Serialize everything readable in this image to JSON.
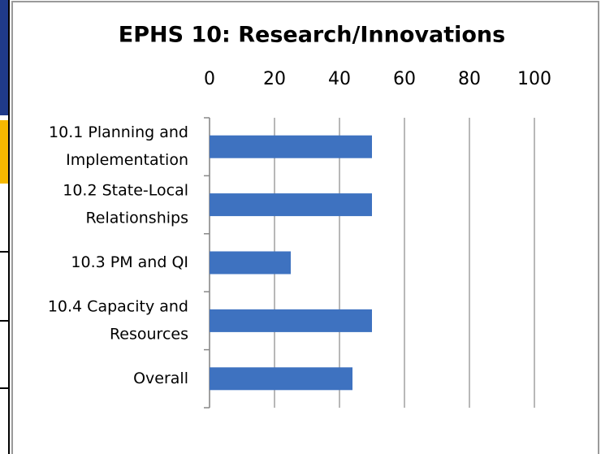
{
  "chart_data": {
    "type": "bar",
    "orientation": "horizontal",
    "title": "EPHS 10: Research/Innovations",
    "categories": [
      [
        "10.1 Planning and",
        "Implementation"
      ],
      [
        "10.2 State-Local",
        "Relationships"
      ],
      [
        "10.3 PM and QI"
      ],
      [
        "10.4 Capacity and",
        "Resources"
      ],
      [
        "Overall"
      ]
    ],
    "values": [
      50,
      50,
      25,
      50,
      44
    ],
    "color": "#3e72c0",
    "xlim": [
      0,
      100
    ],
    "xticks": [
      0,
      20,
      40,
      60,
      80,
      100
    ],
    "grid": true
  }
}
